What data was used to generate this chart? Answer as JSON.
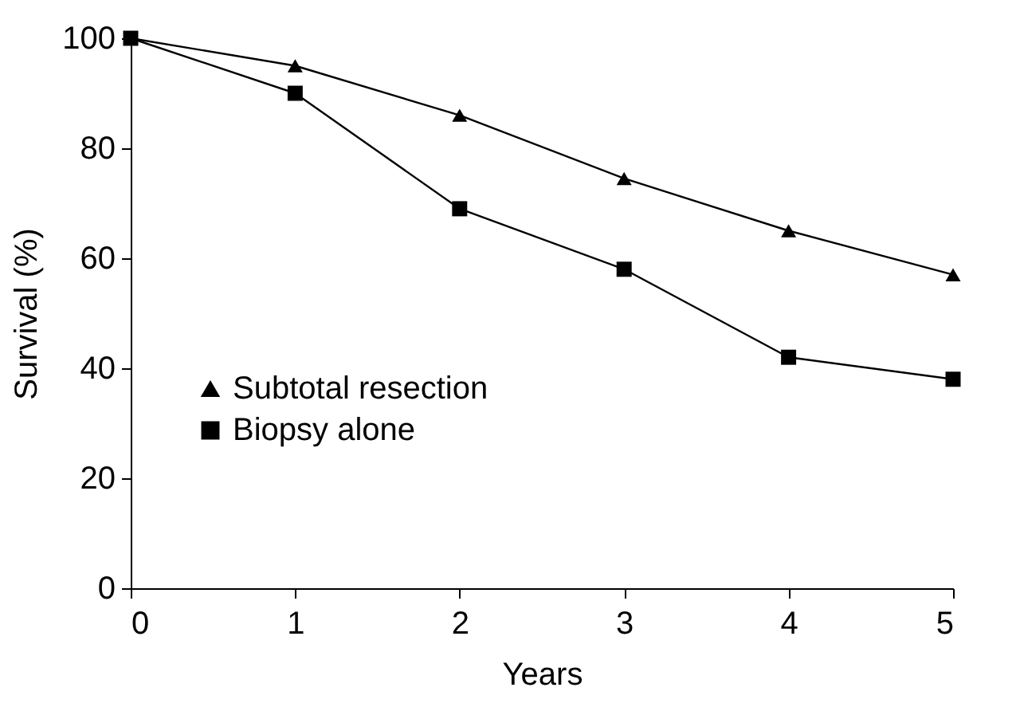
{
  "chart_data": {
    "type": "line",
    "xlabel": "Years",
    "ylabel": "Survival (%)",
    "x": [
      0,
      1,
      2,
      3,
      4,
      5
    ],
    "series": [
      {
        "name": "Subtotal resection",
        "color": "#000000",
        "marker": "triangle",
        "values": [
          100,
          95,
          86,
          74.5,
          65,
          57
        ]
      },
      {
        "name": "Biopsy alone",
        "color": "#000000",
        "marker": "square",
        "values": [
          100,
          90,
          69,
          58,
          42,
          38
        ]
      }
    ],
    "xlim": [
      0,
      5
    ],
    "xticks": [
      0,
      1,
      2,
      3,
      4,
      5
    ],
    "ylim": [
      0,
      100
    ],
    "yticks": [
      0,
      20,
      40,
      60,
      80,
      100
    ],
    "grid": false,
    "legend": "bottom left",
    "line_style": "solid"
  }
}
